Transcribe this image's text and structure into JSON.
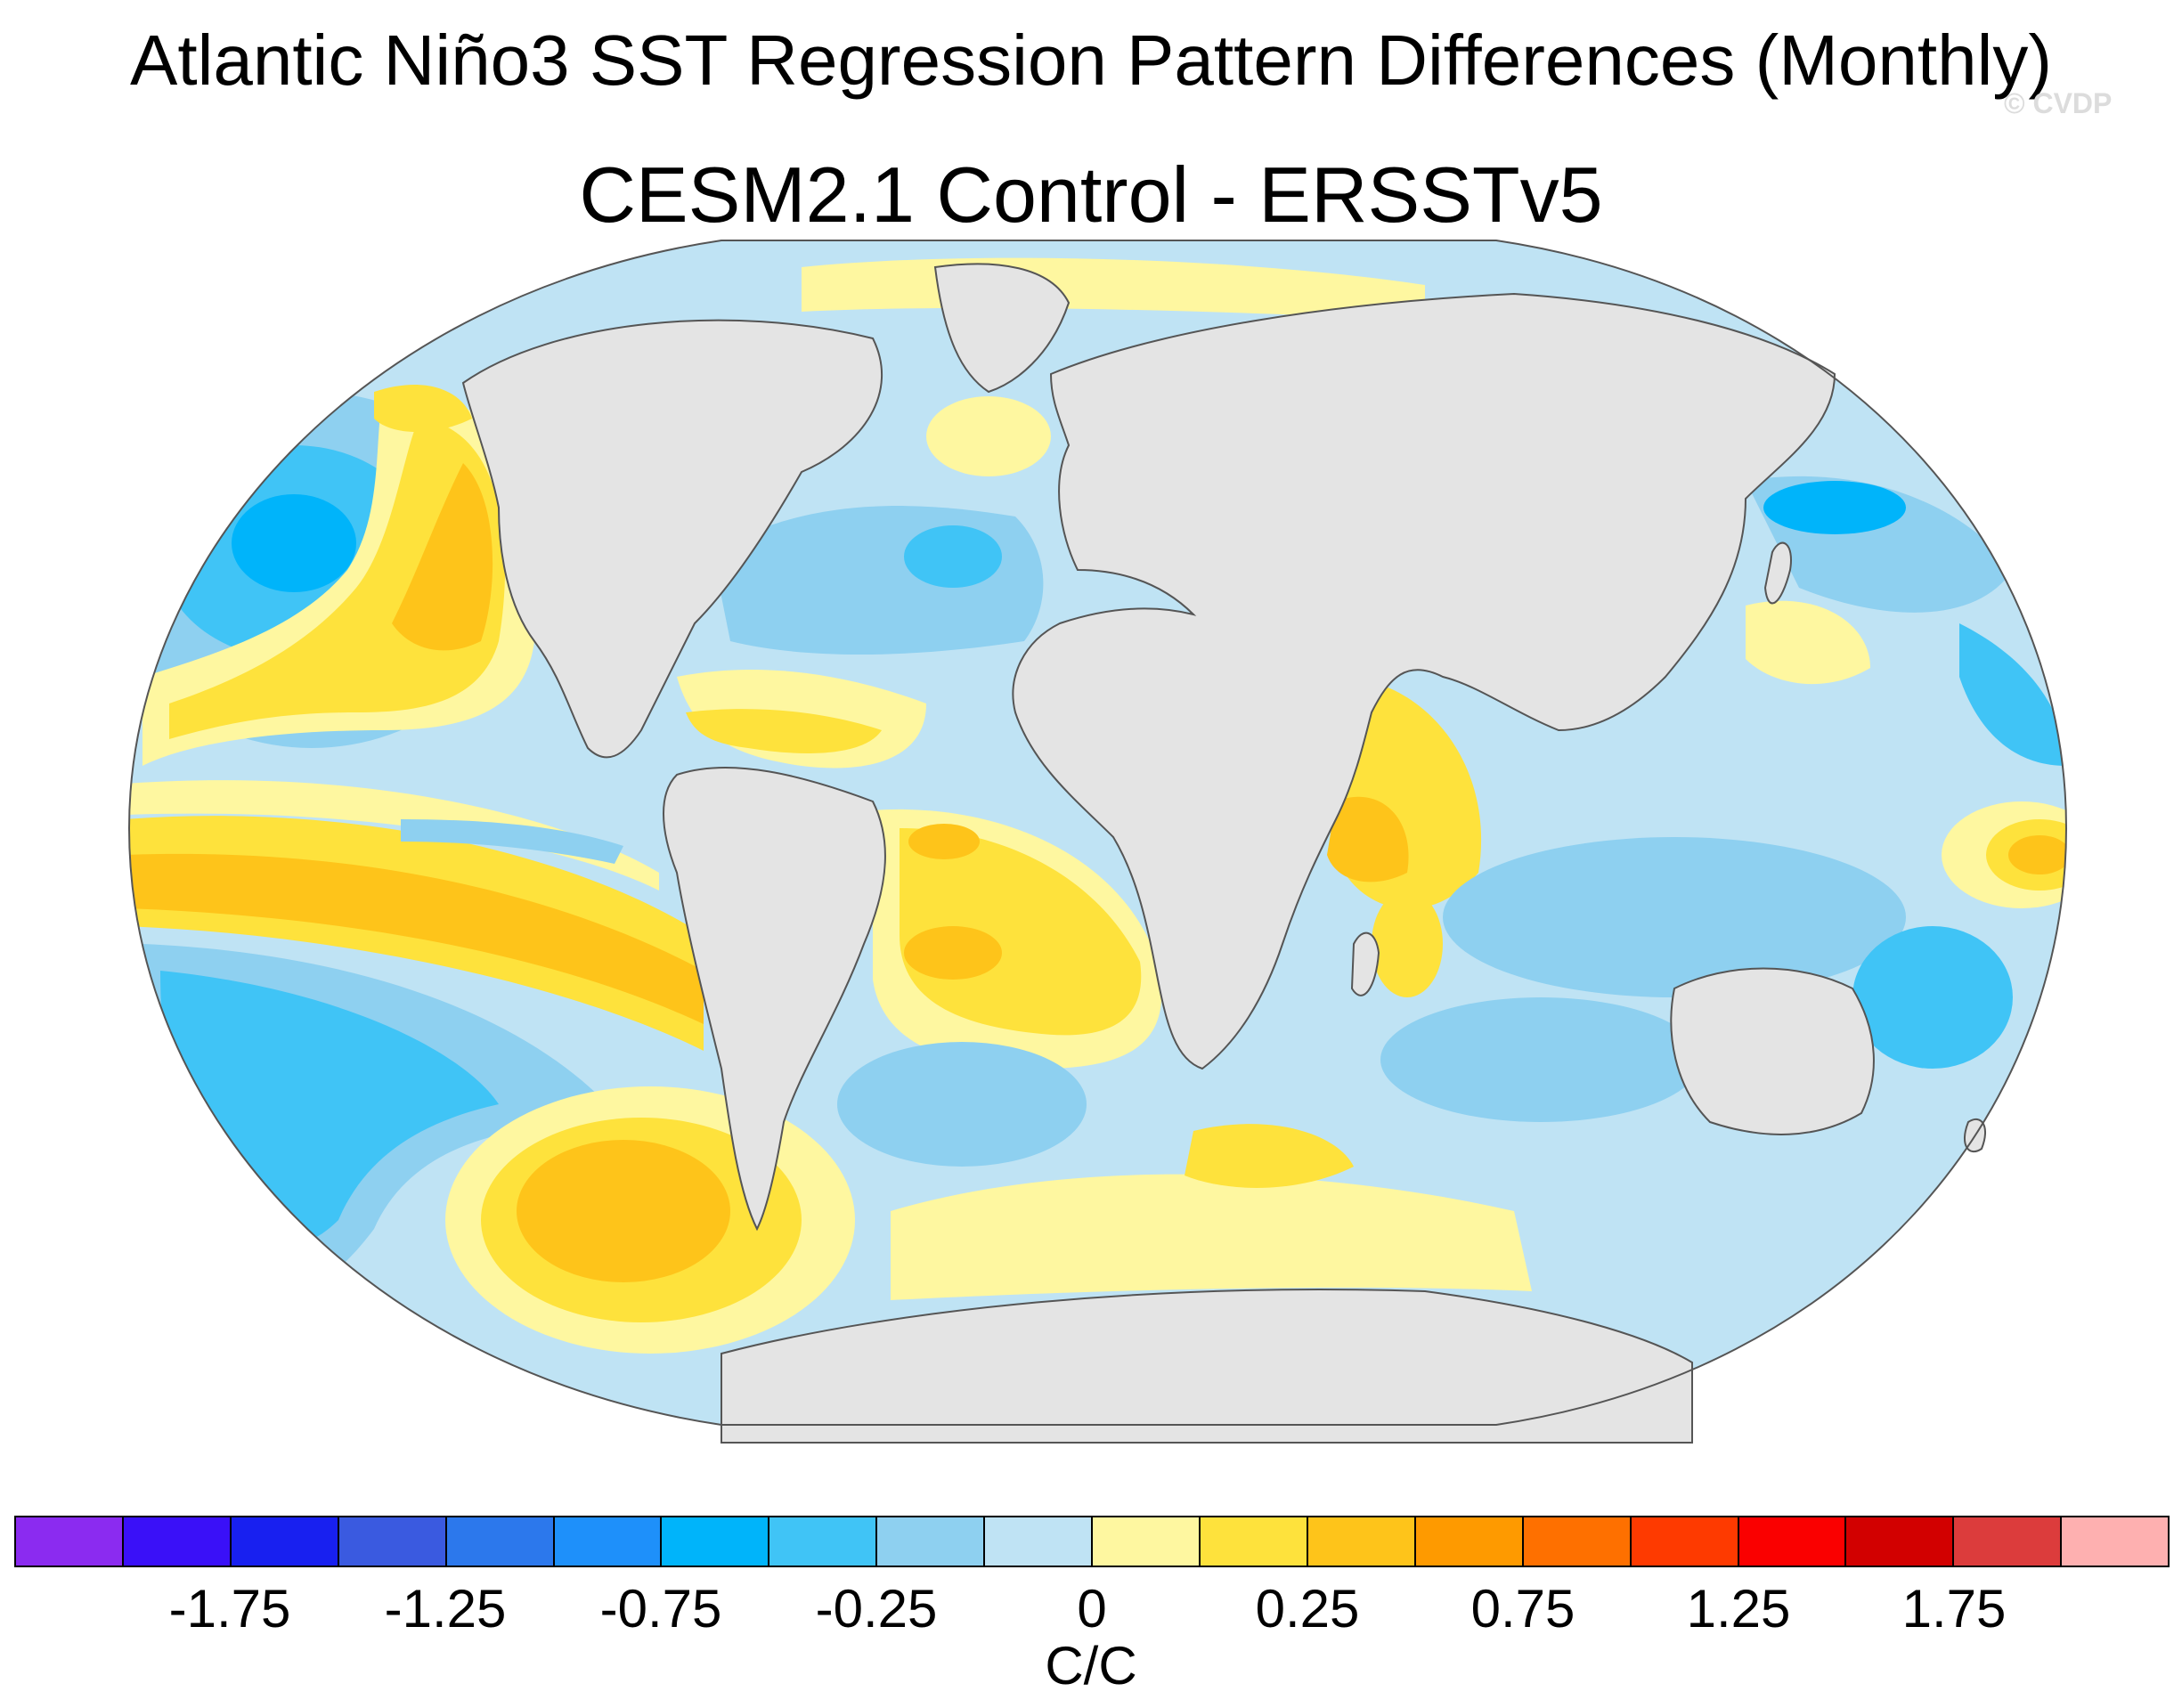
{
  "title": "Atlantic Niño3 SST Regression Pattern Differences (Monthly)",
  "subtitle": "CESM2.1 Control - ERSSTv5",
  "watermark": "© CVDP",
  "colorbar": {
    "units": "C/C",
    "colors": [
      "#8b2bf0",
      "#3a10f8",
      "#1820f0",
      "#3a5ae0",
      "#2c78ec",
      "#1e90fa",
      "#00b4fa",
      "#40c4f6",
      "#8ed0f0",
      "#bfe3f4",
      "#fef7a0",
      "#fee23c",
      "#fec41a",
      "#fe9a00",
      "#fe7000",
      "#fe3a00",
      "#fa0000",
      "#d20000",
      "#dc3c3c",
      "#feb0b0"
    ],
    "ticks": [
      "-1.75",
      "-1.25",
      "-0.75",
      "-0.25",
      "0",
      "0.25",
      "0.75",
      "1.25",
      "1.75"
    ]
  },
  "map": {
    "projection": "Robinson",
    "land_color": "#e4e4e4",
    "coastline_color": "#555555"
  }
}
